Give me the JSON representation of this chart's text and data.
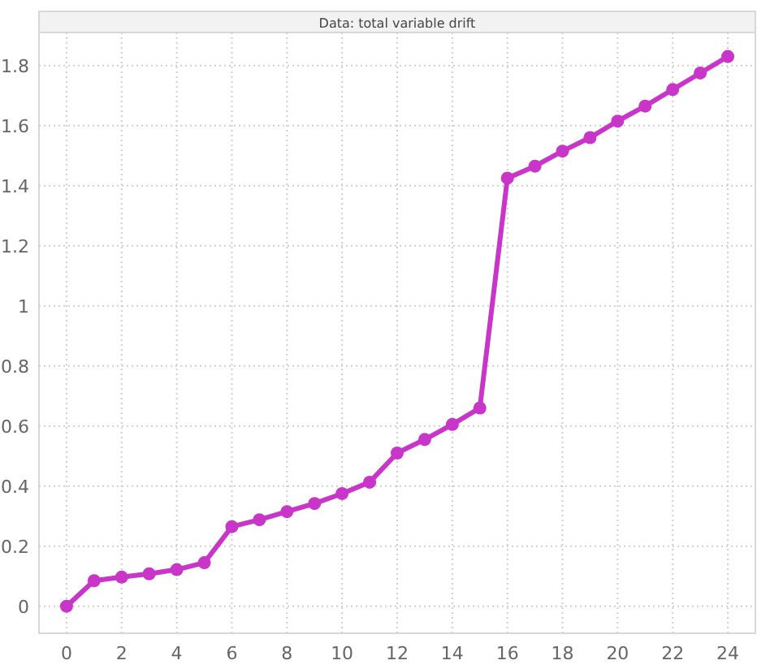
{
  "chart_data": {
    "type": "line",
    "title": "Data: total variable drift",
    "x": [
      0,
      1,
      2,
      3,
      4,
      5,
      6,
      7,
      8,
      9,
      10,
      11,
      12,
      13,
      14,
      15,
      16,
      17,
      18,
      19,
      20,
      21,
      22,
      23,
      24
    ],
    "series": [
      {
        "color": "#c935c9",
        "values": [
          0,
          0.085,
          0.097,
          0.108,
          0.122,
          0.145,
          0.265,
          0.288,
          0.315,
          0.342,
          0.375,
          0.413,
          0.51,
          0.555,
          0.605,
          0.66,
          1.425,
          1.465,
          1.515,
          1.56,
          1.615,
          1.665,
          1.72,
          1.775,
          1.83
        ]
      }
    ],
    "xlim": [
      -1,
      25
    ],
    "xticks": [
      0,
      2,
      4,
      6,
      8,
      10,
      12,
      14,
      16,
      18,
      20,
      22,
      24
    ],
    "ylim": [
      -0.09,
      1.91
    ],
    "yticks": [
      0,
      0.2,
      0.4,
      0.6,
      0.8,
      1,
      1.2,
      1.4,
      1.6,
      1.8
    ],
    "grid": true,
    "marker": "circle",
    "line_style": "solid"
  }
}
